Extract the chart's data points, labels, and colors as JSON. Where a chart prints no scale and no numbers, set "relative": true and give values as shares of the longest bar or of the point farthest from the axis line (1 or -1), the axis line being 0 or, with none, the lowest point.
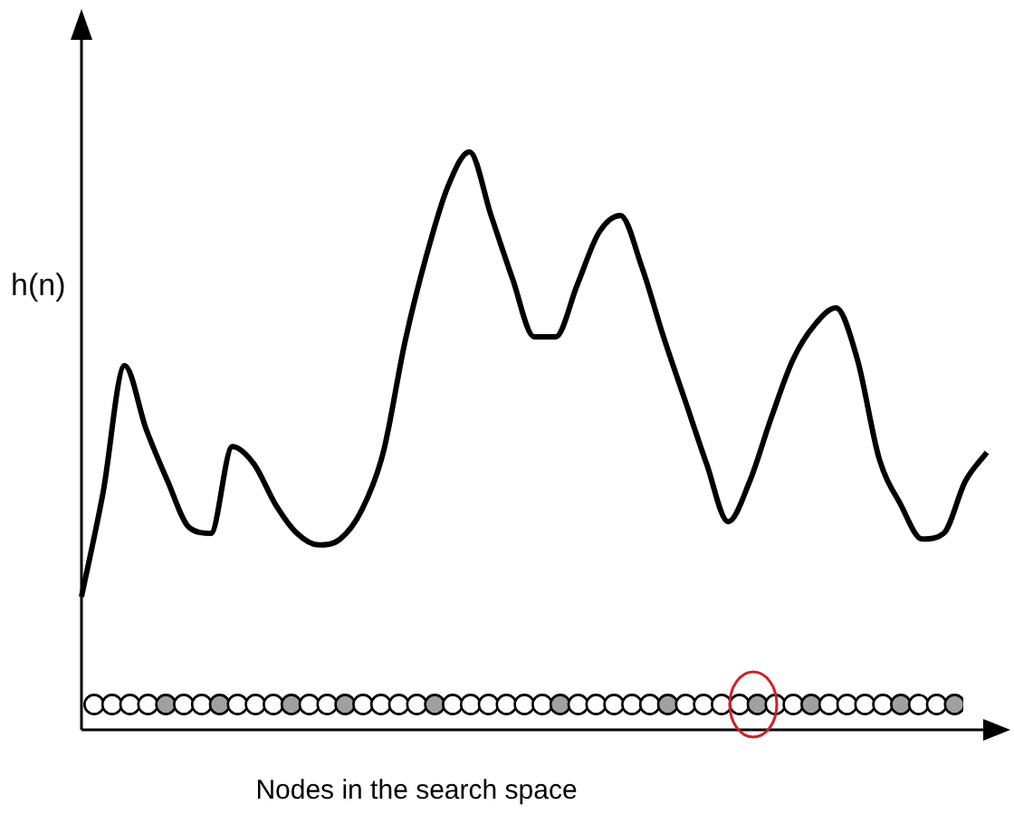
{
  "chart_data": {
    "type": "line",
    "relative": true,
    "xlabel": "Nodes in the search space",
    "ylabel": "h(n)",
    "color": "#000000",
    "marker": "none",
    "grid": false,
    "legend": false,
    "tick_labels": false,
    "categories": [
      null,
      null,
      null,
      null,
      null,
      null,
      null,
      null,
      null,
      null,
      null,
      null,
      null,
      null,
      null,
      null,
      null,
      null,
      null,
      null,
      null,
      null,
      null,
      null,
      null,
      null,
      null,
      null,
      null,
      null,
      null,
      null,
      null,
      null,
      null,
      null,
      null,
      null,
      null,
      null,
      null,
      null,
      null
    ],
    "values": [
      0.23,
      0.41,
      0.63,
      0.52,
      0.43,
      0.35,
      0.34,
      0.49,
      0.46,
      0.39,
      0.34,
      0.32,
      0.33,
      0.38,
      0.48,
      0.67,
      0.82,
      0.94,
      1,
      0.89,
      0.78,
      0.68,
      0.68,
      0.77,
      0.86,
      0.89,
      0.8,
      0.68,
      0.57,
      0.46,
      0.36,
      0.43,
      0.54,
      0.64,
      0.7,
      0.73,
      0.64,
      0.47,
      0.39,
      0.33,
      0.34,
      0.43,
      0.48
    ]
  }
}
